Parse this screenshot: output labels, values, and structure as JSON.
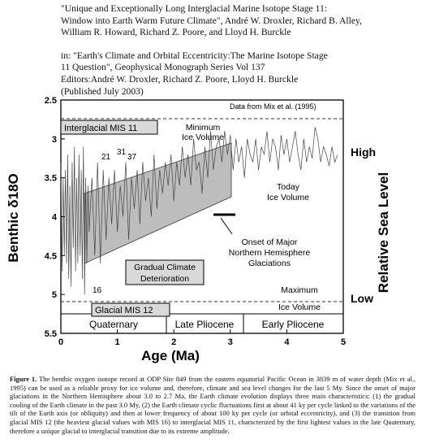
{
  "header": {
    "lines": [
      "\"Unique and Exceptionally Long Interglacial Marine Isotope Stage 11:",
      "Window into Earth Warm Future Climate\", André W. Droxler, Richard B. Alley,",
      "William R. Howard, Richard Z. Poore, and Lloyd H. Burckle"
    ],
    "source_lines": [
      "in: \"Earth's Climate and Orbital Eccentricity:The Marine Isotope Stage",
      " 11 Question\", Geophysical Monograph Series Vol 137",
      "Editors:André W. Droxler, Richard Z. Poore, Lloyd H. Burckle",
      "(Published July 2003)"
    ]
  },
  "chart_data": {
    "type": "line",
    "xlabel": "Age (Ma)",
    "ylabel": "Benthic δ18O",
    "right_label": "Relative Sea Level",
    "right_high": "High",
    "right_low": "Low",
    "xlim": [
      0,
      5
    ],
    "ylim": [
      5.5,
      2.5
    ],
    "x_ticks": [
      "0",
      "1",
      "2",
      "3",
      "4",
      "5"
    ],
    "y_ticks": [
      "2.5",
      "3",
      "3.5",
      "4",
      "4.5",
      "5",
      "5.5"
    ],
    "source_note": "Data from Mix et al. (1995)",
    "series": [
      {
        "x": [
          0,
          0.02,
          0.04,
          0.06,
          0.08,
          0.1,
          0.12,
          0.14,
          0.16,
          0.18,
          0.2,
          0.22,
          0.24,
          0.26,
          0.28,
          0.3,
          0.32,
          0.34,
          0.36,
          0.38,
          0.4,
          0.42,
          0.44,
          0.46,
          0.48,
          0.5,
          0.55,
          0.6,
          0.65,
          0.7,
          0.75,
          0.8,
          0.85,
          0.9,
          0.95,
          1.0,
          1.05,
          1.1,
          1.15,
          1.2,
          1.25,
          1.3,
          1.35,
          1.4,
          1.45,
          1.5,
          1.55,
          1.6,
          1.65,
          1.7,
          1.75,
          1.8,
          1.85,
          1.9,
          1.95,
          2.0,
          2.05,
          2.1,
          2.15,
          2.2,
          2.25,
          2.3,
          2.35,
          2.4,
          2.45,
          2.5,
          2.55,
          2.6,
          2.65,
          2.7,
          2.75,
          2.8,
          2.85,
          2.9,
          2.95,
          3.0,
          3.05,
          3.1,
          3.15,
          3.2,
          3.25,
          3.3,
          3.35,
          3.4,
          3.45,
          3.5,
          3.55,
          3.6,
          3.65,
          3.7,
          3.75,
          3.8,
          3.85,
          3.9,
          3.95,
          4.0,
          4.05,
          4.1,
          4.15,
          4.2,
          4.25,
          4.3,
          4.35,
          4.4,
          4.45,
          4.5,
          4.55,
          4.6,
          4.65,
          4.7,
          4.75,
          4.8,
          4.85,
          4.9
        ],
        "values": [
          3.3,
          4.7,
          3.5,
          4.5,
          3.4,
          4.6,
          3.2,
          4.8,
          3.6,
          4.9,
          3.3,
          4.4,
          3.1,
          4.7,
          3.5,
          4.6,
          3.2,
          4.5,
          3.4,
          4.8,
          3.1,
          5.0,
          3.5,
          4.6,
          3.6,
          4.2,
          3.5,
          4.5,
          3.3,
          4.6,
          3.4,
          4.3,
          3.5,
          4.1,
          3.4,
          4.2,
          3.6,
          4.0,
          3.3,
          4.3,
          3.5,
          3.9,
          3.4,
          4.1,
          3.3,
          3.8,
          3.5,
          4.0,
          3.2,
          3.9,
          3.4,
          3.7,
          3.3,
          3.6,
          3.2,
          3.8,
          3.3,
          3.6,
          3.1,
          3.5,
          3.2,
          3.6,
          3.0,
          3.4,
          3.3,
          3.7,
          3.1,
          3.5,
          2.9,
          3.4,
          3.1,
          3.0,
          3.3,
          2.9,
          3.2,
          2.95,
          3.4,
          3.0,
          3.3,
          3.1,
          3.5,
          3.0,
          3.2,
          3.3,
          3.0,
          3.4,
          3.1,
          3.2,
          2.9,
          3.3,
          3.0,
          3.1,
          3.4,
          2.95,
          3.2,
          3.0,
          3.3,
          3.1,
          2.9,
          3.2,
          3.4,
          3.0,
          3.3,
          3.1,
          3.25,
          2.85,
          3.0,
          3.3,
          3.1,
          3.2,
          3.35,
          3.1,
          3.3,
          3.2
        ]
      }
    ],
    "annotations": {
      "interglacial": "Interglacial MIS 11",
      "glacial": "Glacial MIS 12",
      "gradual1": "Gradual Climate",
      "gradual2": "Deterioration",
      "min1": "Minimum",
      "min2": "Ice Volume",
      "max1": "Maximum",
      "max2": "Ice Volume",
      "today1": "Today",
      "today2": "Ice Volume",
      "onset1": "Onset of Major",
      "onset2": "Northern Hemisphere",
      "onset3": "Glaciations",
      "n21": "21",
      "n31": "31",
      "n37": "37",
      "n16": "16"
    },
    "epochs": [
      "Quaternary",
      "Late Pliocene",
      "Early Pliocene"
    ]
  },
  "caption": {
    "label": "Figure 1.",
    "text": "The benthic oxygen isotope record at ODP Site 849 from the eastern equatorial Pacific Ocean in 3839 m of water depth (Mix et al., 1995) can be used as a reliable proxy for ice volume and, therefore, climate and sea level changes for the last 5 My. Since the onset of major glaciations in the Northern Hemisphere about 3.0 to 2.7 Ma, the Earth climate evolution displays three main characteristics: (1) the gradual cooling of the Earth climate in the past 3.0 My, (2) the Earth climate cyclic fluctuations first at about 41 ky per cycle linked to the variations of the tilt of the Earth axis (or obliquity) and then at lower frequency of about 100 ky per cycle (or orbital eccentricity), and (3) the transition from glacial MIS 12 (the heaviest glacial values with MIS 16) to interglacial MIS 11, characterized by the first lightest values in the late Quaternary, therefore a unique glacial to interglacial transition due to its extreme amplitude."
  }
}
